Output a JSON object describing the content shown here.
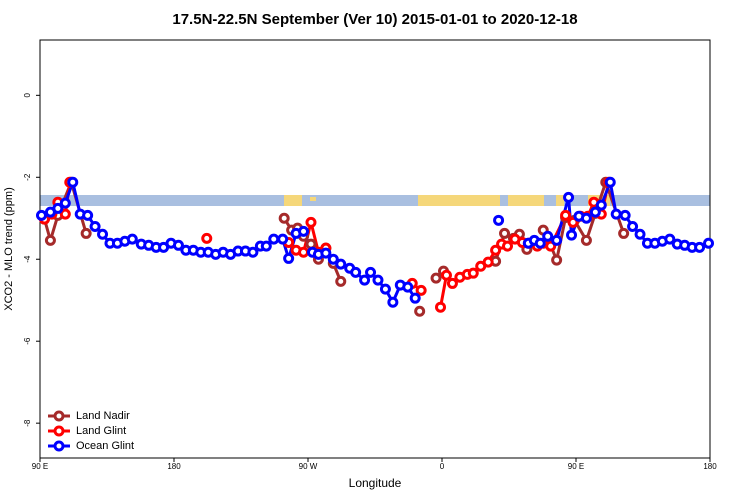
{
  "chart_data": {
    "type": "line",
    "title": "17.5N-22.5N September (Ver 10)   2015-01-01 to 2020-12-18",
    "xlabel": "Longitude",
    "ylabel": "XCO2 - MLO trend (ppm)",
    "xlim": [
      90,
      540
    ],
    "ylim": [
      -8.85,
      1.35
    ],
    "xticks": [
      {
        "value": 90,
        "label": "90 E"
      },
      180,
      {
        "value": 270,
        "label": "90 W"
      },
      {
        "value": 360,
        "label": "0"
      },
      {
        "value": 450,
        "label": "90 E"
      },
      {
        "value": 540,
        "label": "180"
      }
    ],
    "yticks": [
      0,
      -2,
      -4,
      -6,
      -8
    ],
    "legend": "bottomleft",
    "series": [
      {
        "name": "Land Nadir",
        "color": "#a52a2a",
        "x": [
          93,
          97,
          102,
          111,
          121,
          null,
          254,
          259,
          263,
          267,
          272,
          277,
          282,
          287,
          292,
          null,
          345,
          null,
          356,
          361,
          null,
          396,
          402,
          408,
          412,
          417,
          null,
          428,
          433,
          437,
          443,
          449,
          457,
          463,
          470,
          482
        ],
        "values": [
          -3.02,
          -3.54,
          -2.93,
          -2.12,
          -3.37,
          null,
          -3.0,
          -3.29,
          -3.24,
          -3.44,
          -3.63,
          -4.0,
          -3.73,
          -4.1,
          -4.54,
          null,
          -5.27,
          null,
          -4.46,
          -4.29,
          null,
          -4.05,
          -3.37,
          -3.49,
          -3.39,
          -3.76,
          null,
          -3.29,
          -3.66,
          -4.02,
          -2.98,
          -3.05,
          -3.54,
          -2.88,
          -2.12,
          -3.37
        ]
      },
      {
        "name": "Land Glint",
        "color": "#ff0000",
        "x": [
          93,
          98,
          102,
          107,
          110,
          null,
          202,
          null,
          257,
          262,
          267,
          272,
          277,
          282,
          null,
          340,
          346,
          null,
          359,
          363,
          367,
          372,
          377,
          381,
          386,
          391,
          396,
          400,
          404,
          409,
          414,
          418,
          424,
          428,
          433,
          443,
          448,
          453,
          458,
          462,
          467,
          472
        ],
        "values": [
          -3.02,
          -2.9,
          -2.61,
          -2.9,
          -2.12,
          null,
          -3.49,
          null,
          -3.59,
          -3.78,
          -3.83,
          -3.1,
          -3.83,
          -3.73,
          null,
          -4.59,
          -4.76,
          null,
          -5.17,
          -4.39,
          -4.59,
          -4.44,
          -4.37,
          -4.34,
          -4.17,
          -4.07,
          -3.78,
          -3.63,
          -3.68,
          -3.51,
          -3.59,
          -3.61,
          -3.68,
          -3.61,
          -3.68,
          -2.93,
          -3.1,
          -2.95,
          -2.95,
          -2.61,
          -2.9,
          -2.12
        ]
      },
      {
        "name": "Ocean Glint",
        "color": "#0000ff",
        "x": [
          91,
          97,
          102,
          107,
          112,
          117,
          122,
          127,
          132,
          137,
          142,
          147,
          152,
          158,
          163,
          168,
          173,
          178,
          183,
          188,
          193,
          198,
          203,
          208,
          213,
          218,
          223,
          228,
          233,
          238,
          242,
          247,
          253,
          257,
          262,
          267,
          273,
          277,
          282,
          287,
          292,
          298,
          302,
          308,
          312,
          317,
          322,
          327,
          332,
          337,
          342,
          null,
          398,
          null,
          418,
          422,
          426,
          431,
          437,
          445,
          447,
          452,
          457,
          463,
          467,
          473,
          477,
          483,
          488,
          493,
          498,
          503,
          508,
          513,
          518,
          523,
          528,
          533,
          539
        ],
        "values": [
          -2.93,
          -2.85,
          -2.76,
          -2.63,
          -2.12,
          -2.9,
          -2.93,
          -3.2,
          -3.39,
          -3.61,
          -3.61,
          -3.56,
          -3.51,
          -3.63,
          -3.66,
          -3.71,
          -3.71,
          -3.61,
          -3.66,
          -3.78,
          -3.78,
          -3.83,
          -3.83,
          -3.88,
          -3.83,
          -3.88,
          -3.8,
          -3.8,
          -3.83,
          -3.68,
          -3.68,
          -3.51,
          -3.51,
          -3.98,
          -3.37,
          -3.32,
          -3.83,
          -3.88,
          -3.85,
          -4.0,
          -4.12,
          -4.22,
          -4.32,
          -4.51,
          -4.32,
          -4.51,
          -4.73,
          -5.05,
          -4.63,
          -4.68,
          -4.95,
          null,
          -3.05,
          null,
          -3.61,
          -3.54,
          -3.61,
          -3.44,
          -3.54,
          -2.49,
          -3.41,
          -2.95,
          -3.0,
          -2.85,
          -2.68,
          -2.12,
          -2.9,
          -2.93,
          -3.2,
          -3.39,
          -3.61,
          -3.61,
          -3.56,
          -3.51,
          -3.63,
          -3.66,
          -3.71,
          -3.71,
          -3.61
        ]
      }
    ]
  }
}
